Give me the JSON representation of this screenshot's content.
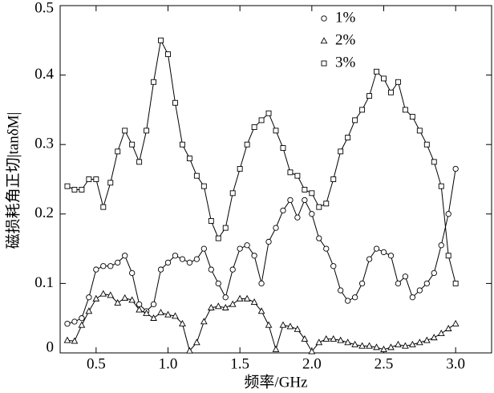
{
  "chart_data": {
    "type": "line",
    "xlabel": "频率/GHz",
    "ylabel": "磁损耗角正切|tanδM|",
    "x": [
      0.3,
      0.35,
      0.4,
      0.45,
      0.5,
      0.55,
      0.6,
      0.65,
      0.7,
      0.75,
      0.8,
      0.85,
      0.9,
      0.95,
      1.0,
      1.05,
      1.1,
      1.15,
      1.2,
      1.25,
      1.3,
      1.35,
      1.4,
      1.45,
      1.5,
      1.55,
      1.6,
      1.65,
      1.7,
      1.75,
      1.8,
      1.85,
      1.9,
      1.95,
      2.0,
      2.05,
      2.1,
      2.15,
      2.2,
      2.25,
      2.3,
      2.35,
      2.4,
      2.45,
      2.5,
      2.55,
      2.6,
      2.65,
      2.7,
      2.75,
      2.8,
      2.85,
      2.9,
      2.95,
      3.0
    ],
    "series": [
      {
        "name": "1%",
        "color": "#000000",
        "marker": "circle",
        "values": [
          0.042,
          0.045,
          0.05,
          0.08,
          0.12,
          0.125,
          0.125,
          0.13,
          0.14,
          0.115,
          0.07,
          0.06,
          0.07,
          0.12,
          0.13,
          0.14,
          0.135,
          0.13,
          0.135,
          0.15,
          0.12,
          0.1,
          0.08,
          0.12,
          0.15,
          0.155,
          0.14,
          0.1,
          0.16,
          0.18,
          0.205,
          0.22,
          0.195,
          0.22,
          0.2,
          0.165,
          0.15,
          0.125,
          0.09,
          0.075,
          0.08,
          0.1,
          0.135,
          0.15,
          0.145,
          0.14,
          0.1,
          0.11,
          0.08,
          0.09,
          0.1,
          0.115,
          0.155,
          0.2,
          0.265
        ]
      },
      {
        "name": "2%",
        "color": "#000000",
        "marker": "triangle",
        "values": [
          0.018,
          0.017,
          0.04,
          0.06,
          0.078,
          0.085,
          0.083,
          0.072,
          0.079,
          0.076,
          0.062,
          0.057,
          0.05,
          0.058,
          0.055,
          0.053,
          0.042,
          0.003,
          0.015,
          0.045,
          0.065,
          0.067,
          0.065,
          0.07,
          0.078,
          0.078,
          0.073,
          0.06,
          0.04,
          0.005,
          0.04,
          0.038,
          0.034,
          0.02,
          0.002,
          0.015,
          0.02,
          0.02,
          0.018,
          0.015,
          0.012,
          0.01,
          0.01,
          0.008,
          0.005,
          0.008,
          0.012,
          0.01,
          0.012,
          0.015,
          0.018,
          0.022,
          0.028,
          0.035,
          0.042
        ]
      },
      {
        "name": "3%",
        "color": "#000000",
        "marker": "square",
        "values": [
          0.24,
          0.235,
          0.235,
          0.25,
          0.25,
          0.21,
          0.245,
          0.29,
          0.32,
          0.3,
          0.275,
          0.32,
          0.39,
          0.45,
          0.43,
          0.36,
          0.3,
          0.28,
          0.255,
          0.24,
          0.19,
          0.165,
          0.18,
          0.23,
          0.265,
          0.3,
          0.325,
          0.335,
          0.345,
          0.32,
          0.295,
          0.26,
          0.255,
          0.235,
          0.23,
          0.21,
          0.215,
          0.25,
          0.29,
          0.31,
          0.335,
          0.35,
          0.37,
          0.405,
          0.395,
          0.375,
          0.39,
          0.35,
          0.34,
          0.32,
          0.3,
          0.275,
          0.24,
          0.14,
          0.1
        ]
      }
    ],
    "xlim": [
      0.25,
      3.25
    ],
    "ylim": [
      0,
      0.5
    ],
    "xticks": [
      0.5,
      {
        "value": 1.0,
        "label": "1.0"
      },
      1.5,
      {
        "value": 2.0,
        "label": "2.0"
      },
      2.5,
      {
        "value": 3.0,
        "label": "3.0"
      }
    ],
    "yticks": [
      0,
      0.1,
      0.2,
      0.3,
      0.4,
      0.5
    ],
    "legend": "upper center"
  }
}
